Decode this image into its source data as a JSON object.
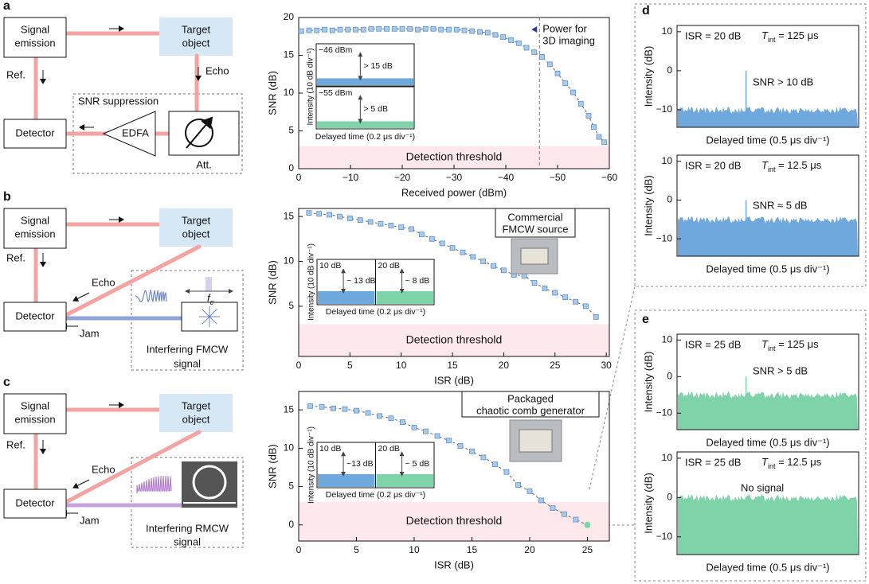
{
  "diagrams": [
    {
      "label": "a",
      "emitter": [
        "Signal",
        "emission"
      ],
      "target": [
        "Target",
        "object"
      ],
      "detector": "Detector",
      "ref": "Ref.",
      "echo": "Echo",
      "box_title": "SNR suppression",
      "amplifier": "EDFA",
      "attenuator": "Att."
    },
    {
      "label": "b",
      "emitter": [
        "Signal",
        "emission"
      ],
      "target": [
        "Target",
        "object"
      ],
      "detector": "Detector",
      "ref": "Ref.",
      "echo": "Echo",
      "jam": "Jam",
      "fc": [
        "f",
        "c"
      ],
      "source": [
        "Interfering FMCW",
        "signal"
      ]
    },
    {
      "label": "c",
      "emitter": [
        "Signal",
        "emission"
      ],
      "target": [
        "Target",
        "object"
      ],
      "detector": "Detector",
      "ref": "Ref.",
      "echo": "Echo",
      "jam": "Jam",
      "source": [
        "Interfering RMCW",
        "signal"
      ]
    }
  ],
  "panel_labels": [
    "d",
    "e"
  ],
  "chart_data": [
    {
      "type": "snr",
      "xlabel": "Received power (dBm)",
      "ylabel": "SNR (dB)",
      "color": "#a9cbe9",
      "xlim": [
        0,
        -60
      ],
      "ylim": [
        0,
        20
      ],
      "xticks": [
        0,
        {
          "value": -10,
          "label": "−10"
        },
        {
          "value": -20,
          "label": "−20"
        },
        {
          "value": -30,
          "label": "−30"
        },
        {
          "value": -40,
          "label": "−40"
        },
        {
          "value": -50,
          "label": "−50"
        },
        {
          "value": -60,
          "label": "−60"
        }
      ],
      "yticks": [
        0,
        5,
        10,
        15,
        20
      ],
      "x": [
        -0.5,
        -2,
        -3.5,
        -5,
        -6.5,
        -8,
        -9.5,
        -11,
        -12.5,
        -14,
        -15.5,
        -17,
        -18.5,
        -20,
        -21.5,
        -23,
        -24.5,
        -26,
        -27.5,
        -29,
        -30.5,
        -32,
        -33.5,
        -35,
        -36.5,
        -38,
        -39.5,
        -41,
        -42.5,
        -44,
        -45.5,
        -47,
        -48.5,
        -50,
        -51.5,
        -53,
        -54.5,
        -56,
        -57,
        -58,
        -59
      ],
      "values": [
        18.2,
        18.3,
        18.3,
        18.4,
        18.3,
        18.4,
        18.4,
        18.4,
        18.4,
        18.5,
        18.5,
        18.5,
        18.5,
        18.5,
        18.5,
        18.4,
        18.5,
        18.5,
        18.4,
        18.4,
        18.4,
        18.3,
        18.2,
        18.1,
        18,
        17.7,
        17.4,
        17,
        16.6,
        16,
        15.4,
        14.8,
        13.8,
        12.6,
        11.3,
        10.1,
        8.6,
        7,
        5.5,
        4.2,
        3.5
      ],
      "threshold": 3,
      "threshold_label": "Detection threshold",
      "marker_line": -46.5,
      "marker_label": [
        "Power for",
        "3D imaging"
      ],
      "inset": {
        "ylabel": "Intensity (10 dB div⁻¹)",
        "xlabel": "Delayed time (0.2 μs div⁻¹)",
        "colors": [
          "#6fa8dc",
          "#7fd3a8"
        ],
        "panels": [
          {
            "label": "−46 dBm",
            "note": "> 15 dB"
          },
          {
            "label": "−55 dBm",
            "note": "> 5 dB"
          }
        ]
      }
    },
    {
      "type": "snr",
      "xlabel": "ISR (dB)",
      "ylabel": "SNR (dB)",
      "color": "#a9cbe9",
      "xlim": [
        0,
        30.3
      ],
      "ylim": [
        -0.6,
        15.9
      ],
      "xticks": [
        0,
        5,
        10,
        15,
        20,
        25,
        30
      ],
      "yticks": [
        5,
        10,
        15
      ],
      "x": [
        1,
        2,
        3,
        4,
        5,
        6,
        7,
        8,
        9,
        10,
        11,
        12,
        13,
        14,
        15,
        16,
        17,
        18,
        19,
        20,
        21,
        22,
        23,
        24,
        25,
        26,
        27,
        28,
        29
      ],
      "values": [
        15.4,
        15.3,
        15.2,
        15,
        14.8,
        14.6,
        14.4,
        14.2,
        14.0,
        13.8,
        13.6,
        13,
        12.5,
        12,
        11.5,
        11,
        10.5,
        10,
        9.5,
        9,
        8.5,
        8.4,
        7.6,
        7,
        6.5,
        6,
        5.5,
        5,
        3.8
      ],
      "threshold": 3,
      "threshold_label": "Detection threshold",
      "photo_label": [
        "Commercial",
        "FMCW source"
      ],
      "inset": {
        "ylabel": "Intensity (10 dB div⁻¹)",
        "xlabel": "Delayed time (0.2 μs div⁻¹)",
        "colors": [
          "#6fa8dc",
          "#7fd3a8"
        ],
        "panels": [
          {
            "label": "10 dB",
            "note": "~ 13 dB"
          },
          {
            "label": "20 dB",
            "note": "~ 8 dB"
          }
        ]
      }
    },
    {
      "type": "snr",
      "xlabel": "ISR (dB)",
      "ylabel": "SNR (dB)",
      "color": "#a9cbe9",
      "xlim": [
        0,
        26.9
      ],
      "ylim": [
        -2.1,
        17.4
      ],
      "xticks": [
        0,
        5,
        10,
        15,
        20,
        25
      ],
      "yticks": [
        0,
        5,
        10,
        15
      ],
      "x": [
        1,
        2,
        3,
        4,
        5,
        6,
        7,
        8,
        9,
        10,
        11,
        12,
        13,
        14,
        15,
        16,
        17,
        18,
        19,
        20,
        21,
        22,
        23,
        24
      ],
      "values": [
        15.5,
        15.4,
        15.2,
        15.1,
        14.9,
        14.6,
        14.2,
        13.9,
        13.4,
        12.7,
        12.2,
        11.6,
        11.0,
        10.3,
        9.6,
        8.8,
        7.9,
        6.9,
        5.2,
        4.4,
        3.2,
        2.2,
        1.4,
        0.7
      ],
      "highlight": {
        "x": 25,
        "value": 0,
        "color": "#7fd3a8"
      },
      "threshold": 3,
      "threshold_label": "Detection threshold",
      "photo_label": [
        "Packaged",
        "chaotic comb generator"
      ],
      "inset": {
        "ylabel": "Intensity (10 dB div⁻¹)",
        "xlabel": "Delayed time (0.2 μs div⁻¹)",
        "colors": [
          "#6fa8dc",
          "#7fd3a8"
        ],
        "panels": [
          {
            "label": "10 dB",
            "note": "~13 dB"
          },
          {
            "label": "20 dB",
            "note": "~ 5 dB"
          }
        ]
      }
    },
    {
      "type": "spectrum",
      "xlabel": "Delayed time (0.5 μs div⁻¹)",
      "ylabel": "Intensity (dB)",
      "color": "#6fa8dc",
      "ylim": [
        -14.5,
        11.6
      ],
      "yticks": [
        {
          "value": -10,
          "label": "−10"
        },
        0,
        10
      ],
      "noise_level": -11,
      "peak": 0,
      "isr": "ISR = 20 dB",
      "tint": [
        "T",
        "int",
        " = 125 μs"
      ],
      "note": "SNR > 10 dB"
    },
    {
      "type": "spectrum",
      "xlabel": "Delayed time (0.5 μs div⁻¹)",
      "ylabel": "Intensity (dB)",
      "color": "#6fa8dc",
      "ylim": [
        -14.5,
        11.6
      ],
      "yticks": [
        {
          "value": -10,
          "label": "−10"
        },
        0,
        10
      ],
      "noise_level": -6,
      "peak": 0,
      "isr": "ISR = 20 dB",
      "tint": [
        "T",
        "int",
        " = 12.5 μs"
      ],
      "note": "SNR ≈ 5 dB"
    },
    {
      "type": "spectrum",
      "xlabel": "Delayed time (0.5 μs div⁻¹)",
      "ylabel": "Intensity (dB)",
      "color": "#7fd3a8",
      "ylim": [
        -14.5,
        11.6
      ],
      "yticks": [
        {
          "value": -10,
          "label": "−10"
        },
        0,
        10
      ],
      "noise_level": -6,
      "peak": 0,
      "isr": "ISR = 25 dB",
      "tint": [
        "T",
        "int",
        " = 125 μs"
      ],
      "note": "SNR > 5 dB"
    },
    {
      "type": "spectrum",
      "xlabel": "Delayed time (0.5 μs div⁻¹)",
      "ylabel": "Intensity (dB)",
      "color": "#7fd3a8",
      "ylim": [
        -14.5,
        11.6
      ],
      "yticks": [
        {
          "value": -10,
          "label": "−10"
        },
        0,
        10
      ],
      "noise_level": -1,
      "isr": "ISR = 25 dB",
      "tint": [
        "T",
        "int",
        " = 12.5 μs"
      ],
      "note": "No signal"
    }
  ]
}
